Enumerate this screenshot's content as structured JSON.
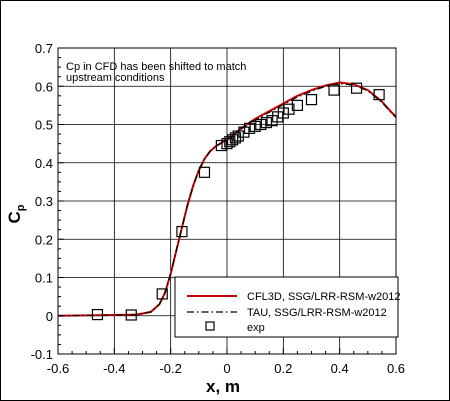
{
  "chart_data": {
    "type": "line",
    "xlabel": "x, m",
    "ylabel": "C",
    "ylabel_sub": "p",
    "xlim": [
      -0.6,
      0.6
    ],
    "ylim": [
      -0.1,
      0.7
    ],
    "x_ticks": [
      "-0.6",
      "-0.4",
      "-0.2",
      "0",
      "0.2",
      "0.4",
      "0.6"
    ],
    "y_ticks": [
      "-0.1",
      "0",
      "0.1",
      "0.2",
      "0.3",
      "0.4",
      "0.5",
      "0.6",
      "0.7"
    ],
    "grid": true,
    "annotation": [
      "Cp in CFD has been shifted to match",
      "upstream conditions"
    ],
    "legend_position": "bottom-right",
    "series": [
      {
        "name": "CFL3D, SSG/LRR-RSM-w2012",
        "style": "solid",
        "color": "#cc0000",
        "x": [
          -0.6,
          -0.5,
          -0.4,
          -0.32,
          -0.27,
          -0.24,
          -0.22,
          -0.2,
          -0.18,
          -0.16,
          -0.14,
          -0.12,
          -0.1,
          -0.08,
          -0.06,
          -0.04,
          -0.02,
          0.0,
          0.02,
          0.05,
          0.1,
          0.15,
          0.2,
          0.25,
          0.3,
          0.35,
          0.4,
          0.45,
          0.5,
          0.55,
          0.58,
          0.6
        ],
        "y": [
          0.0,
          0.001,
          0.002,
          0.003,
          0.01,
          0.03,
          0.06,
          0.11,
          0.17,
          0.23,
          0.29,
          0.34,
          0.38,
          0.41,
          0.43,
          0.443,
          0.452,
          0.46,
          0.47,
          0.49,
          0.515,
          0.535,
          0.555,
          0.575,
          0.59,
          0.602,
          0.61,
          0.605,
          0.59,
          0.56,
          0.535,
          0.52
        ]
      },
      {
        "name": "TAU, SSG/LRR-RSM-w2012",
        "style": "dashdot",
        "color": "#000000",
        "x": [
          -0.6,
          -0.5,
          -0.4,
          -0.32,
          -0.27,
          -0.24,
          -0.22,
          -0.2,
          -0.18,
          -0.16,
          -0.14,
          -0.12,
          -0.1,
          -0.08,
          -0.06,
          -0.04,
          -0.02,
          0.0,
          0.02,
          0.05,
          0.1,
          0.15,
          0.2,
          0.25,
          0.3,
          0.35,
          0.4,
          0.45,
          0.5,
          0.55,
          0.58,
          0.6
        ],
        "y": [
          0.0,
          0.001,
          0.002,
          0.003,
          0.01,
          0.03,
          0.06,
          0.11,
          0.17,
          0.23,
          0.29,
          0.34,
          0.38,
          0.41,
          0.43,
          0.443,
          0.452,
          0.459,
          0.468,
          0.488,
          0.512,
          0.532,
          0.552,
          0.572,
          0.587,
          0.6,
          0.607,
          0.603,
          0.588,
          0.558,
          0.533,
          0.518
        ]
      },
      {
        "name": "exp",
        "style": "markers",
        "marker": "square",
        "color": "#000000",
        "x": [
          -0.46,
          -0.34,
          -0.23,
          -0.16,
          -0.08,
          -0.02,
          0.0,
          0.01,
          0.02,
          0.03,
          0.04,
          0.06,
          0.08,
          0.1,
          0.12,
          0.14,
          0.16,
          0.18,
          0.2,
          0.22,
          0.25,
          0.3,
          0.38,
          0.46,
          0.54
        ],
        "y": [
          0.003,
          0.002,
          0.057,
          0.22,
          0.375,
          0.445,
          0.45,
          0.455,
          0.46,
          0.465,
          0.47,
          0.48,
          0.49,
          0.495,
          0.5,
          0.505,
          0.51,
          0.52,
          0.53,
          0.54,
          0.55,
          0.565,
          0.59,
          0.595,
          0.578
        ]
      }
    ]
  }
}
